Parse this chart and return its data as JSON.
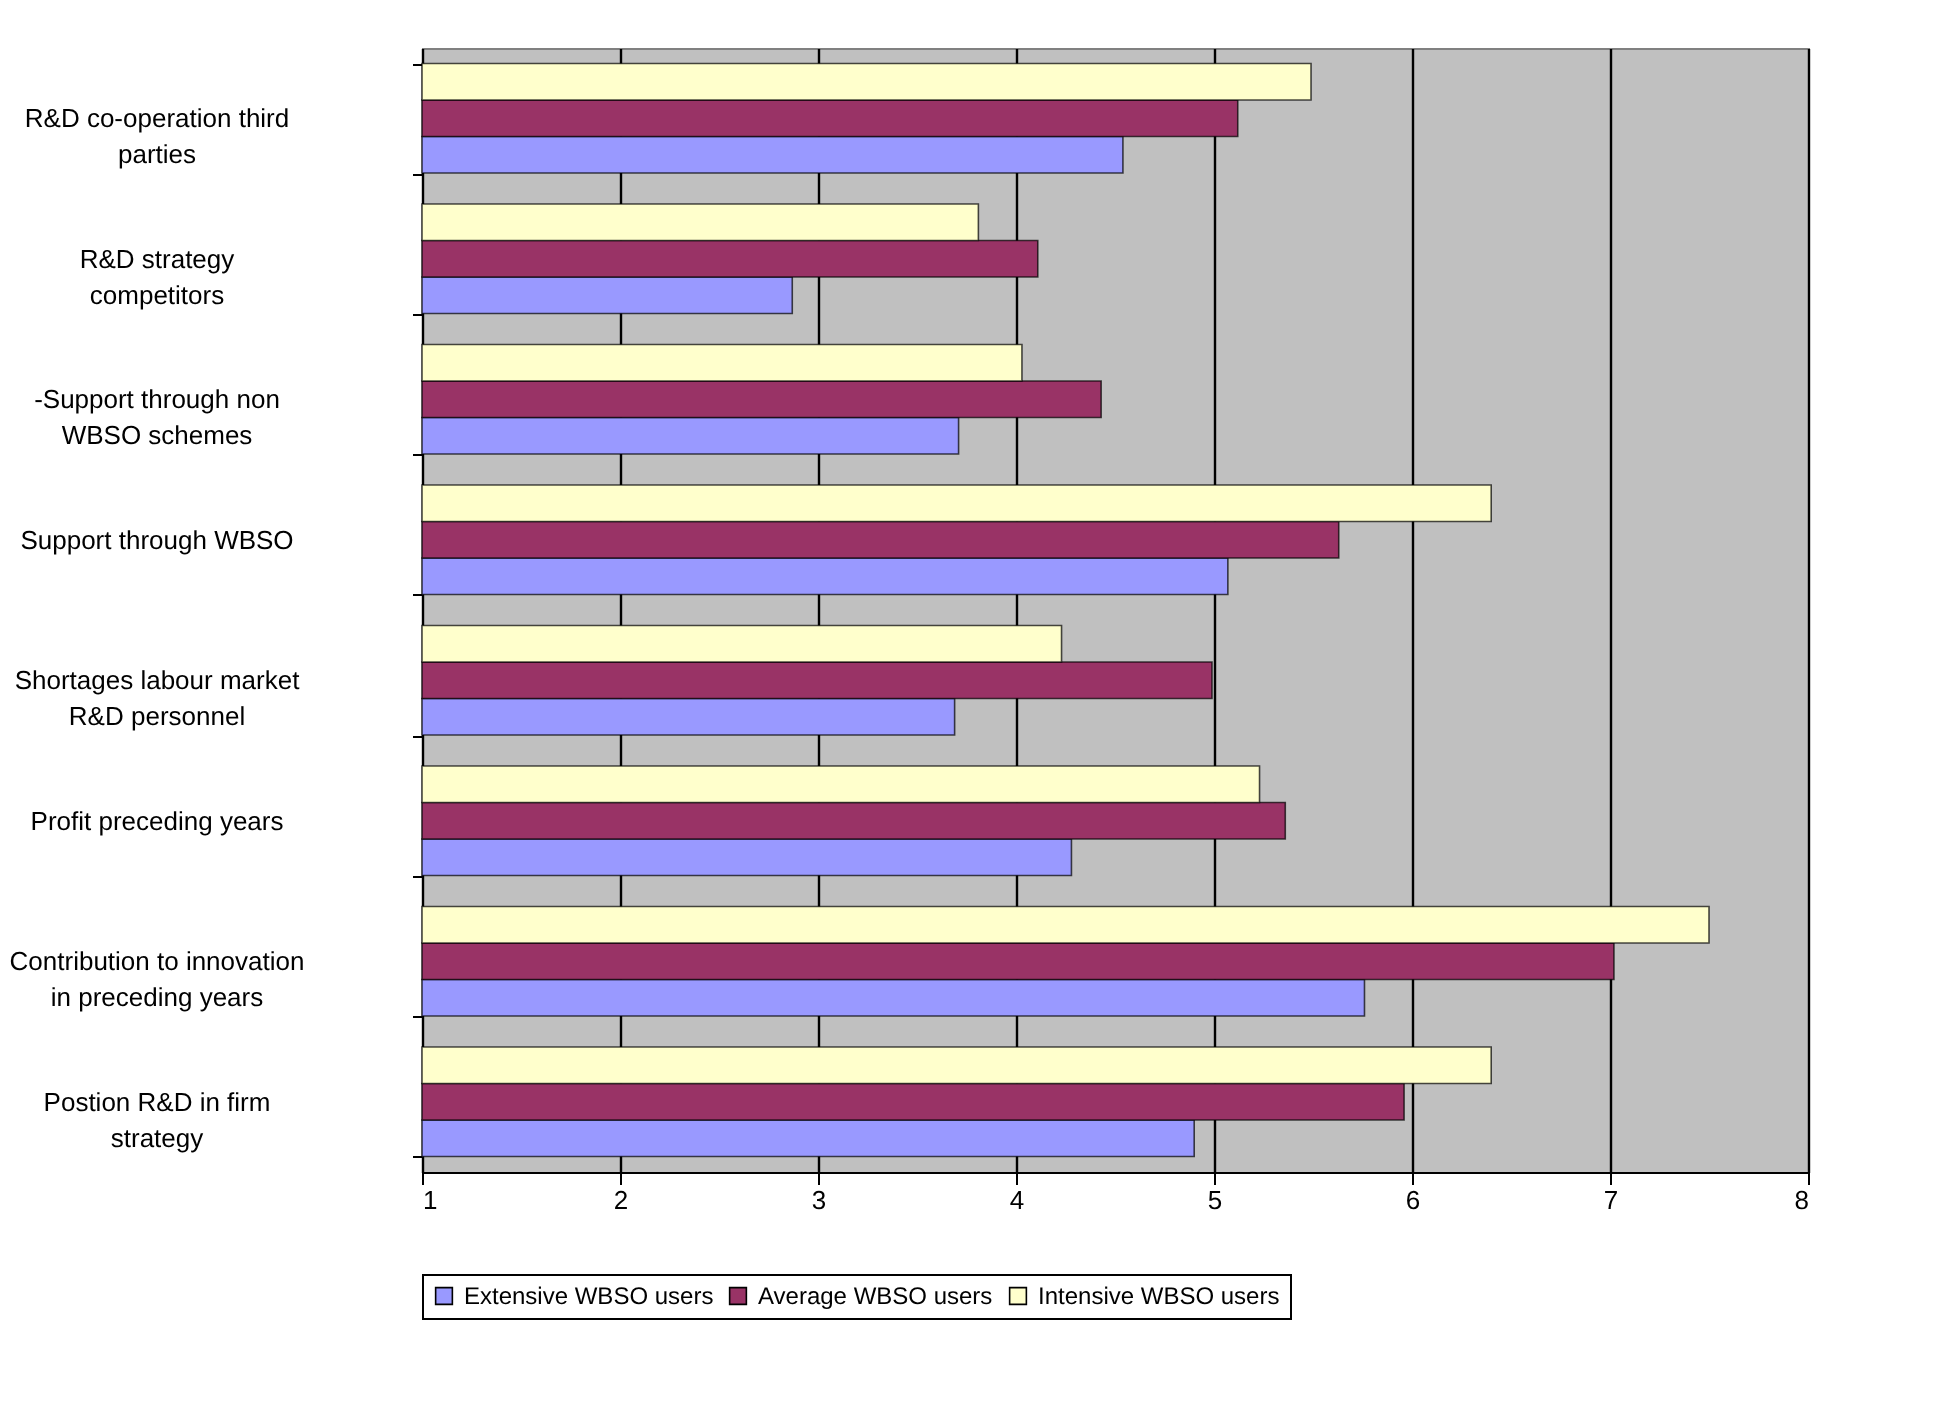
{
  "chart_data": {
    "type": "bar",
    "orientation": "horizontal",
    "categories": [
      "R&D co-operation third\nparties",
      "R&D strategy\ncompetitors",
      "-Support through non\nWBSO schemes",
      "Support through WBSO",
      "Shortages labour market\nR&D personnel",
      "Profit preceding years",
      "Contribution to innovation\nin preceding years",
      "Postion R&D in firm\nstrategy"
    ],
    "series": [
      {
        "name": "Extensive WBSO users",
        "color": "#9999ff",
        "values": [
          4.54,
          2.87,
          3.71,
          5.07,
          3.69,
          4.28,
          5.76,
          4.9
        ]
      },
      {
        "name": "Average WBSO users",
        "color": "#993366",
        "values": [
          5.12,
          4.11,
          4.43,
          5.63,
          4.99,
          5.36,
          7.02,
          5.96
        ]
      },
      {
        "name": "Intensive WBSO users",
        "color": "#ffffcc",
        "values": [
          5.49,
          3.81,
          4.03,
          6.4,
          4.23,
          5.23,
          7.5,
          6.4
        ]
      }
    ],
    "xlim": [
      1,
      8
    ],
    "xticks": [
      1,
      2,
      3,
      4,
      5,
      6,
      7,
      8
    ],
    "grid": "x",
    "legend": "bottom"
  }
}
